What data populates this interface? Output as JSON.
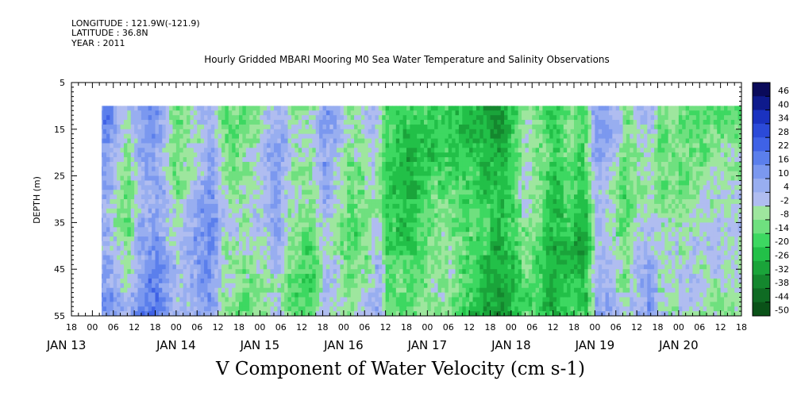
{
  "header": {
    "longitude": "LONGITUDE : 121.9W(-121.9)",
    "latitude": "LATITUDE : 36.8N",
    "year": "YEAR : 2011",
    "title": "Hourly Gridded MBARI Mooring M0 Sea Water Temperature and Salinity Observations"
  },
  "chart_data": {
    "type": "heatmap",
    "title": "Hourly Gridded MBARI Mooring M0 Sea Water Temperature and Salinity Observations",
    "xlabel": "",
    "ylabel": "DEPTH (m)",
    "bottom_label": "V Component of Water Velocity (cm s-1)",
    "y_ticks": [
      5,
      15,
      25,
      35,
      45,
      55
    ],
    "ylim": [
      5,
      55
    ],
    "y_inverted": true,
    "hour_ticks": [
      "18",
      "00",
      "06",
      "12",
      "18",
      "00",
      "06",
      "12",
      "18",
      "00",
      "06",
      "12",
      "18",
      "00",
      "06",
      "12",
      "18",
      "00",
      "06",
      "12",
      "18",
      "00",
      "06",
      "12",
      "18",
      "00",
      "06",
      "12",
      "18",
      "00",
      "06",
      "12",
      "18"
    ],
    "day_labels": [
      "JAN 13",
      "JAN 14",
      "JAN 15",
      "JAN 16",
      "JAN 17",
      "JAN 18",
      "JAN 19",
      "JAN 20"
    ],
    "x_range_hours": [
      "2011-01-12 18:00",
      "2011-01-20 18:00"
    ],
    "data_start": "2011-01-13 00:00",
    "data_depth_range": [
      10,
      55
    ],
    "colorbar": {
      "levels": [
        46,
        40,
        34,
        28,
        22,
        16,
        10,
        4,
        -2,
        -8,
        -14,
        -20,
        -26,
        -32,
        -38,
        -44,
        -50
      ],
      "min": -50,
      "max": 52,
      "colors": [
        "#0a0a5a",
        "#0e1a8c",
        "#1a32c0",
        "#2b4ad8",
        "#3f62e6",
        "#5b7fec",
        "#7b98ef",
        "#98aef0",
        "#b0bdf0",
        "#9ee69e",
        "#6fe07f",
        "#3dd861",
        "#22c048",
        "#1aa43a",
        "#14872e",
        "#0f6b23",
        "#0a5218"
      ]
    },
    "regimes": [
      {
        "day": 13.0,
        "v": 8
      },
      {
        "day": 13.15,
        "v": 12
      },
      {
        "day": 13.3,
        "v": 2
      },
      {
        "day": 13.4,
        "v": -6
      },
      {
        "day": 13.55,
        "v": 10
      },
      {
        "day": 13.7,
        "v": 14
      },
      {
        "day": 13.85,
        "v": 6
      },
      {
        "day": 14.0,
        "v": -6
      },
      {
        "day": 14.2,
        "v": 4
      },
      {
        "day": 14.4,
        "v": 10
      },
      {
        "day": 14.55,
        "v": -8
      },
      {
        "day": 14.8,
        "v": -10
      },
      {
        "day": 15.0,
        "v": -4
      },
      {
        "day": 15.2,
        "v": 6
      },
      {
        "day": 15.35,
        "v": -8
      },
      {
        "day": 15.6,
        "v": -12
      },
      {
        "day": 15.75,
        "v": 6
      },
      {
        "day": 15.9,
        "v": 2
      },
      {
        "day": 16.05,
        "v": -10
      },
      {
        "day": 16.25,
        "v": -4
      },
      {
        "day": 16.4,
        "v": 4
      },
      {
        "day": 16.5,
        "v": -16
      },
      {
        "day": 16.8,
        "v": -20
      },
      {
        "day": 17.0,
        "v": -14
      },
      {
        "day": 17.2,
        "v": -10
      },
      {
        "day": 17.4,
        "v": -18
      },
      {
        "day": 17.6,
        "v": -24
      },
      {
        "day": 17.85,
        "v": -30
      },
      {
        "day": 18.0,
        "v": -20
      },
      {
        "day": 18.15,
        "v": -8
      },
      {
        "day": 18.35,
        "v": -14
      },
      {
        "day": 18.5,
        "v": -24
      },
      {
        "day": 18.7,
        "v": -16
      },
      {
        "day": 18.85,
        "v": -22
      },
      {
        "day": 19.0,
        "v": 8
      },
      {
        "day": 19.2,
        "v": 2
      },
      {
        "day": 19.35,
        "v": -10
      },
      {
        "day": 19.5,
        "v": 0
      },
      {
        "day": 19.65,
        "v": 4
      },
      {
        "day": 19.75,
        "v": -6
      }
    ]
  }
}
